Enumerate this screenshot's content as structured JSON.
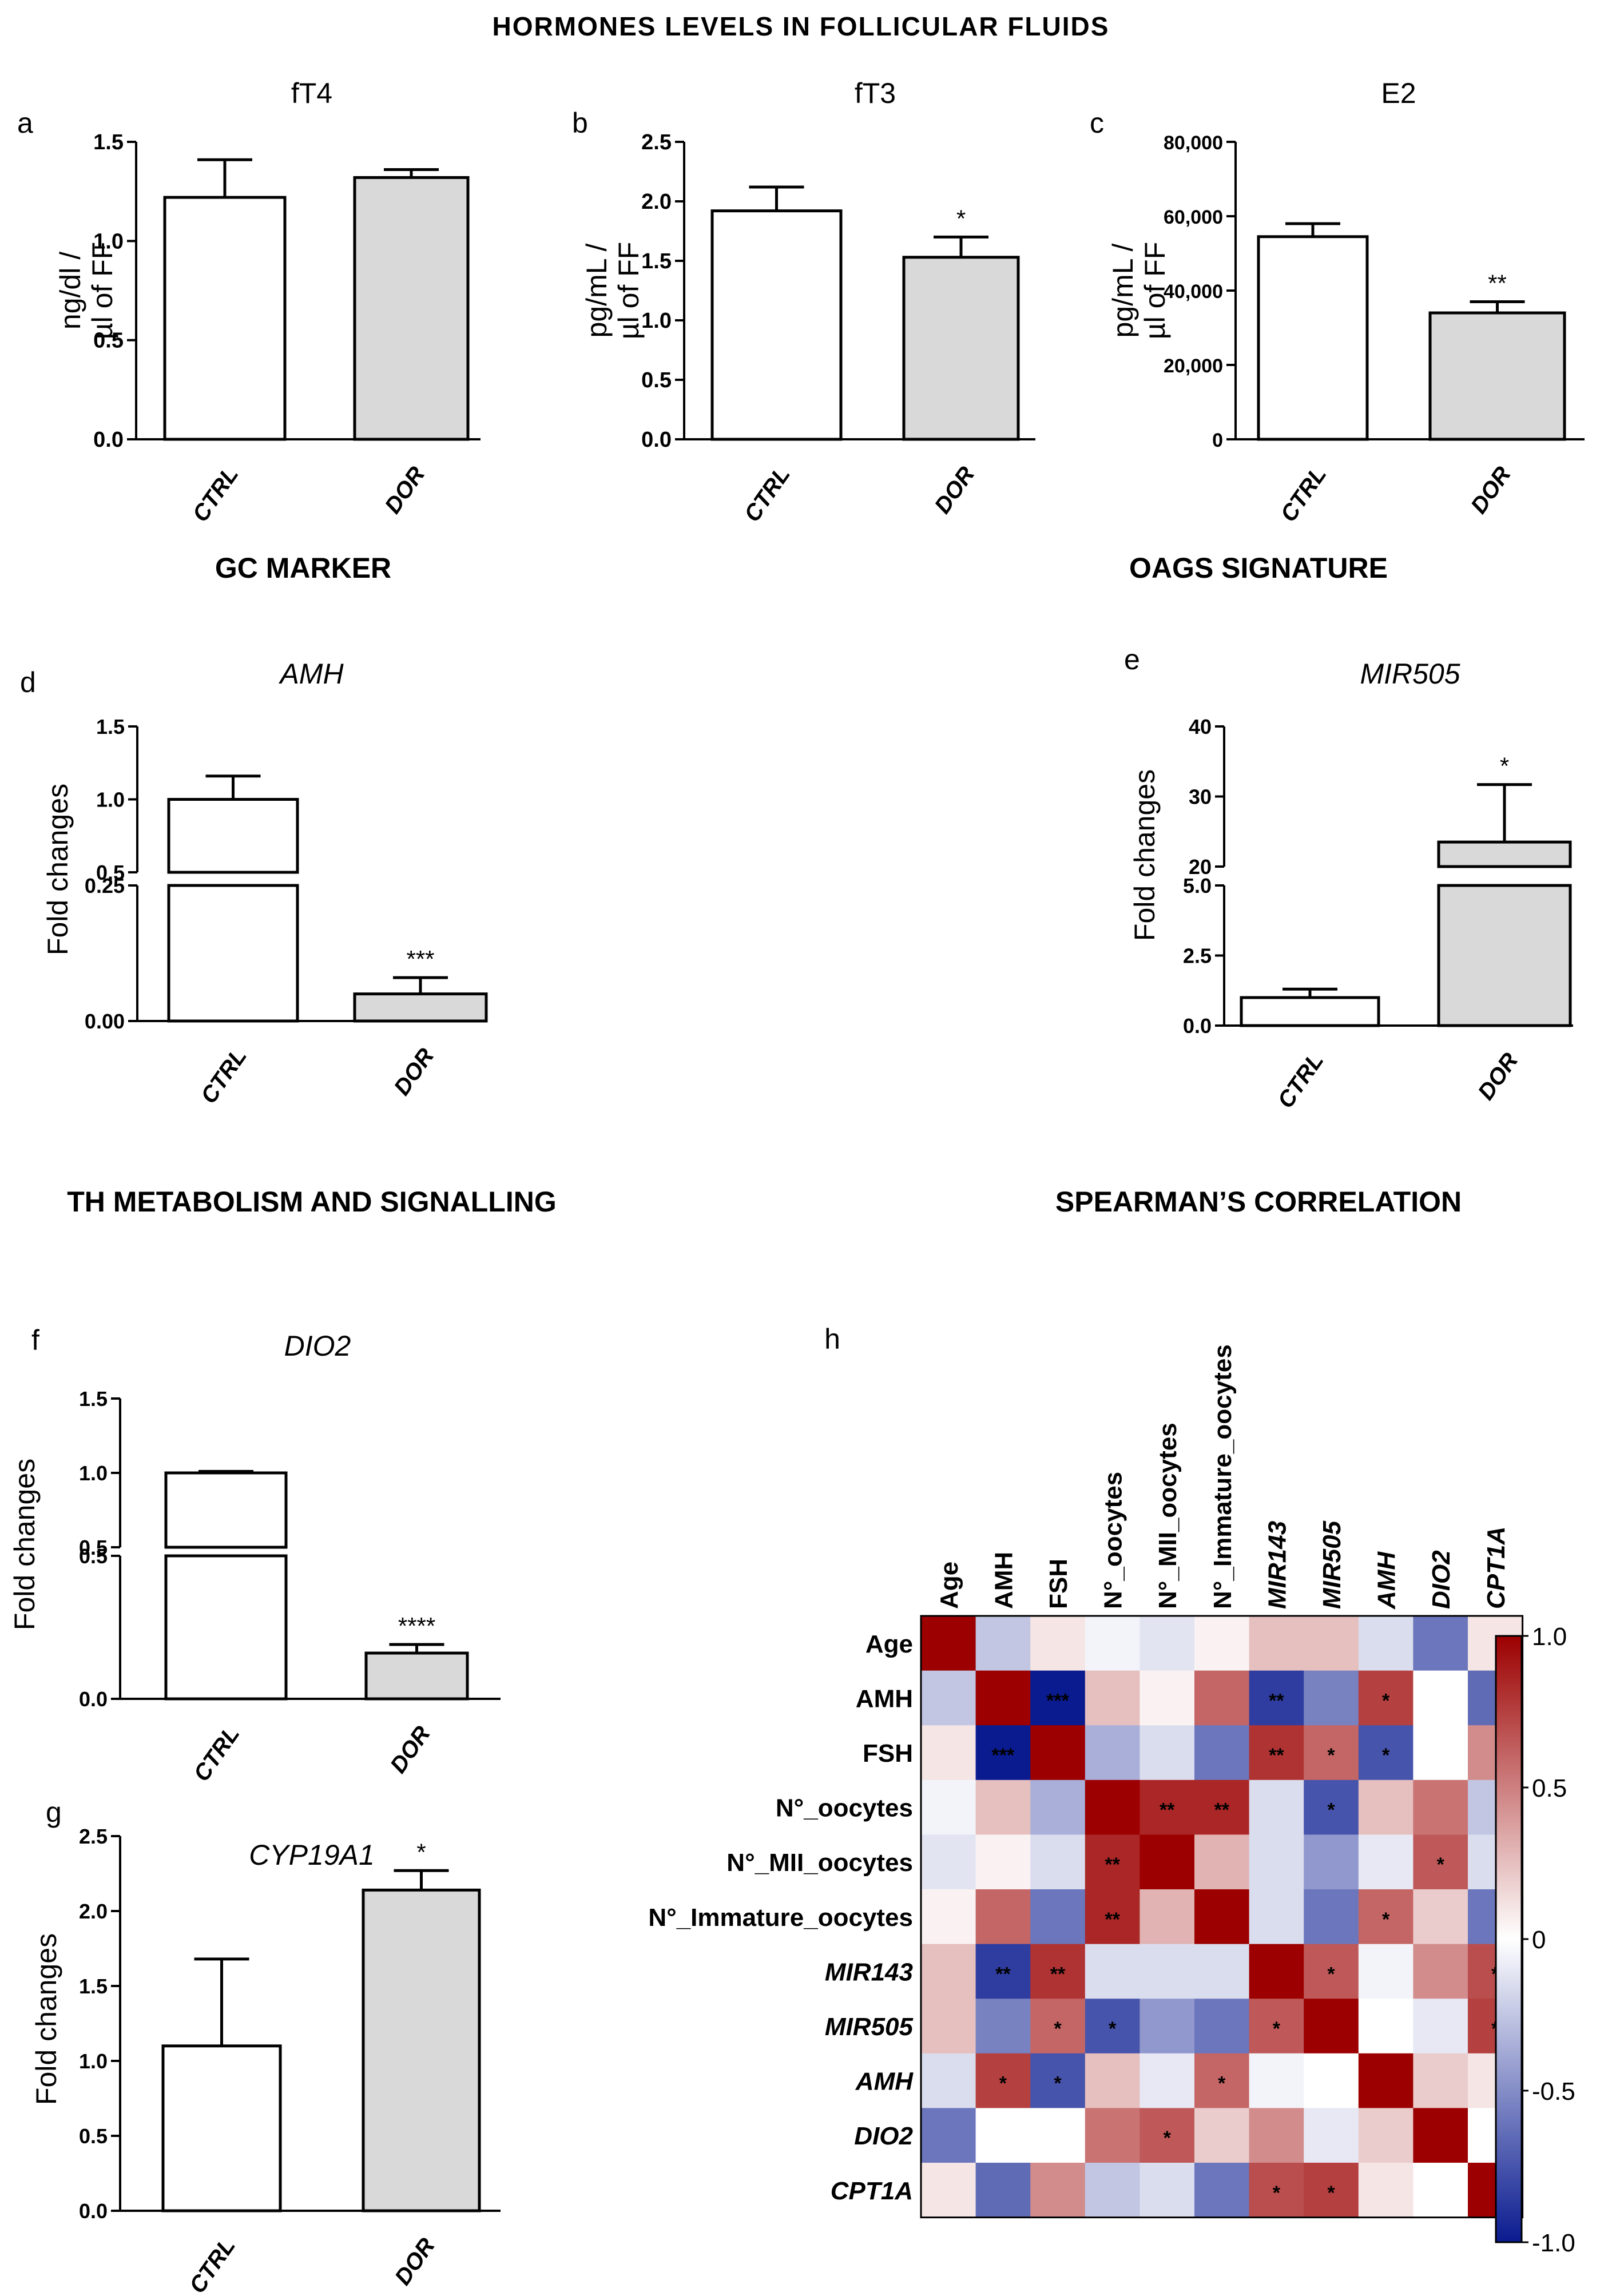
{
  "section_titles": {
    "hormones": "HORMONES LEVELS IN FOLLICULAR FLUIDS",
    "gc": "GC MARKER",
    "oags": "OAGS SIGNATURE",
    "th": "TH METABOLISM AND SIGNALLING",
    "spearman": "SPEARMAN’S CORRELATION"
  },
  "chart_data": [
    {
      "panel": "a",
      "type": "bar",
      "title": "fT4",
      "title_italic": false,
      "ylabel": [
        "ng/dl /",
        "µl of FF"
      ],
      "categories": [
        "CTRL",
        "DOR"
      ],
      "values": [
        1.22,
        1.32
      ],
      "errors": [
        0.19,
        0.04
      ],
      "significance": [
        "",
        ""
      ],
      "bar_colors": [
        "#ffffff",
        "#d9d9d9"
      ],
      "ylim": [
        0,
        1.5
      ],
      "yticks": [
        "0.0",
        "0.5",
        "1.0",
        "1.5"
      ]
    },
    {
      "panel": "b",
      "type": "bar",
      "title": "fT3",
      "title_italic": false,
      "ylabel": [
        "pg/mL /",
        "µl of FF"
      ],
      "categories": [
        "CTRL",
        "DOR"
      ],
      "values": [
        1.92,
        1.53
      ],
      "errors": [
        0.2,
        0.17
      ],
      "significance": [
        "",
        "*"
      ],
      "bar_colors": [
        "#ffffff",
        "#d9d9d9"
      ],
      "ylim": [
        0,
        2.5
      ],
      "yticks": [
        "0.0",
        "0.5",
        "1.0",
        "1.5",
        "2.0",
        "2.5"
      ]
    },
    {
      "panel": "c",
      "type": "bar",
      "title": "E2",
      "title_italic": false,
      "ylabel": [
        "pg/mL /",
        "µl of FF"
      ],
      "categories": [
        "CTRL",
        "DOR"
      ],
      "values": [
        54500,
        34000
      ],
      "errors": [
        3500,
        3000
      ],
      "significance": [
        "",
        "**"
      ],
      "bar_colors": [
        "#ffffff",
        "#d9d9d9"
      ],
      "ylim": [
        0,
        80000
      ],
      "yticks": [
        "0",
        "20,000",
        "40,000",
        "60,000",
        "80,000"
      ]
    },
    {
      "panel": "d",
      "type": "bar",
      "title": "AMH",
      "title_italic": true,
      "ylabel": [
        "Fold changes"
      ],
      "categories": [
        "CTRL",
        "DOR"
      ],
      "values": [
        1.0,
        0.05
      ],
      "errors": [
        0.16,
        0.03
      ],
      "significance": [
        "",
        "***"
      ],
      "bar_colors": [
        "#ffffff",
        "#d9d9d9"
      ],
      "axis_break": {
        "lower": [
          0,
          0.25
        ],
        "upper": [
          0.5,
          1.5
        ]
      },
      "yticks_lower": [
        "0.00",
        "0.25"
      ],
      "yticks_upper": [
        "0.5",
        "1.0",
        "1.5"
      ]
    },
    {
      "panel": "e",
      "type": "bar",
      "title": "MIR505",
      "title_italic": true,
      "ylabel": [
        "Fold changes"
      ],
      "categories": [
        "CTRL",
        "DOR"
      ],
      "values": [
        1.0,
        23.5
      ],
      "errors": [
        0.3,
        8.2
      ],
      "significance": [
        "",
        "*"
      ],
      "bar_colors": [
        "#ffffff",
        "#d9d9d9"
      ],
      "axis_break": {
        "lower": [
          0,
          5
        ],
        "upper": [
          20,
          40
        ]
      },
      "yticks_lower": [
        "0.0",
        "2.5",
        "5.0"
      ],
      "yticks_upper": [
        "20",
        "30",
        "40"
      ]
    },
    {
      "panel": "f",
      "type": "bar",
      "title": "DIO2",
      "title_italic": true,
      "ylabel": [
        "Fold changes"
      ],
      "categories": [
        "CTRL",
        "DOR"
      ],
      "values": [
        1.0,
        0.16
      ],
      "errors": [
        0.01,
        0.03
      ],
      "significance": [
        "",
        "****"
      ],
      "bar_colors": [
        "#ffffff",
        "#d9d9d9"
      ],
      "axis_break": {
        "lower": [
          0,
          0.5
        ],
        "upper": [
          0.5,
          1.5
        ]
      },
      "yticks_lower": [
        "0.0",
        "0.5"
      ],
      "yticks_upper": [
        "0.5",
        "1.0",
        "1.5"
      ]
    },
    {
      "panel": "g",
      "type": "bar",
      "title": "CYP19A1",
      "title_italic": true,
      "ylabel": [
        "Fold changes"
      ],
      "categories": [
        "CTRL",
        "DOR"
      ],
      "values": [
        1.1,
        2.14
      ],
      "errors": [
        0.58,
        0.13
      ],
      "significance": [
        "",
        "*"
      ],
      "bar_colors": [
        "#ffffff",
        "#d9d9d9"
      ],
      "ylim": [
        0,
        2.5
      ],
      "yticks": [
        "0.0",
        "0.5",
        "1.0",
        "1.5",
        "2.0",
        "2.5"
      ]
    },
    {
      "panel": "h",
      "type": "heatmap",
      "variables": [
        "Age",
        "AMH",
        "FSH",
        "N°_oocytes",
        "N°_MII_oocytes",
        "N°_Immature_oocytes",
        "MIR143",
        "MIR505",
        "AMH",
        "DIO2",
        "CPT1A"
      ],
      "italic": [
        false,
        false,
        false,
        false,
        false,
        false,
        true,
        true,
        true,
        true,
        true
      ],
      "matrix": [
        [
          1.0,
          -0.25,
          0.1,
          -0.05,
          -0.12,
          0.05,
          0.25,
          0.25,
          -0.15,
          -0.6,
          0.1
        ],
        [
          -0.25,
          1.0,
          -1.0,
          0.25,
          0.05,
          0.6,
          -0.85,
          -0.55,
          0.75,
          0.0,
          -0.65
        ],
        [
          0.1,
          -1.0,
          1.0,
          -0.35,
          -0.15,
          -0.6,
          0.8,
          0.6,
          -0.75,
          0.0,
          0.45
        ],
        [
          -0.05,
          0.25,
          -0.35,
          1.0,
          0.85,
          0.85,
          -0.15,
          -0.75,
          0.25,
          0.55,
          -0.25
        ],
        [
          -0.12,
          0.05,
          -0.15,
          0.85,
          1.0,
          0.3,
          -0.15,
          -0.45,
          -0.1,
          0.65,
          -0.15
        ],
        [
          0.05,
          0.6,
          -0.6,
          0.85,
          0.3,
          1.0,
          -0.15,
          -0.6,
          0.6,
          0.2,
          -0.6
        ],
        [
          0.25,
          -0.85,
          0.8,
          -0.15,
          -0.15,
          -0.15,
          1.0,
          0.65,
          -0.05,
          0.45,
          0.7
        ],
        [
          0.25,
          -0.55,
          0.6,
          -0.75,
          -0.45,
          -0.6,
          0.65,
          1.0,
          0.0,
          -0.1,
          0.75
        ],
        [
          -0.15,
          0.75,
          -0.75,
          0.25,
          -0.1,
          0.6,
          -0.05,
          0.0,
          1.0,
          0.2,
          0.1
        ],
        [
          -0.6,
          0.0,
          0.0,
          0.55,
          0.65,
          0.2,
          0.45,
          -0.1,
          0.2,
          1.0,
          0.0
        ],
        [
          0.1,
          -0.65,
          0.45,
          -0.25,
          -0.15,
          -0.6,
          0.7,
          0.75,
          0.1,
          0.0,
          1.0
        ]
      ],
      "stars": [
        [
          "",
          "",
          "",
          "",
          "",
          "",
          "",
          "",
          "",
          "",
          ""
        ],
        [
          "",
          "",
          "***",
          "",
          "",
          "",
          "**",
          "",
          "*",
          "",
          ""
        ],
        [
          "",
          "***",
          "",
          "",
          "",
          "",
          "**",
          "*",
          "*",
          "",
          ""
        ],
        [
          "",
          "",
          "",
          "",
          "**",
          "**",
          "",
          "*",
          "",
          "",
          ""
        ],
        [
          "",
          "",
          "",
          "**",
          "",
          "",
          "",
          "",
          "",
          "*",
          ""
        ],
        [
          "",
          "",
          "",
          "**",
          "",
          "",
          "",
          "",
          "*",
          "",
          ""
        ],
        [
          "",
          "**",
          "**",
          "",
          "",
          "",
          "",
          "*",
          "",
          "",
          "*"
        ],
        [
          "",
          "",
          "*",
          "*",
          "",
          "",
          "*",
          "",
          "",
          "",
          "*"
        ],
        [
          "",
          "*",
          "*",
          "",
          "",
          "*",
          "",
          "",
          "",
          "",
          ""
        ],
        [
          "",
          "",
          "",
          "",
          "*",
          "",
          "",
          "",
          "",
          "",
          ""
        ],
        [
          "",
          "",
          "",
          "",
          "",
          "",
          "*",
          "*",
          "",
          "",
          ""
        ]
      ],
      "color_scale": {
        "min": -1.0,
        "max": 1.0,
        "ticks": [
          "1.0",
          "0.5",
          "0",
          "-0.5",
          "-1.0"
        ],
        "colors": [
          "#0a1b8f",
          "#ffffff",
          "#9c0000"
        ]
      }
    }
  ]
}
